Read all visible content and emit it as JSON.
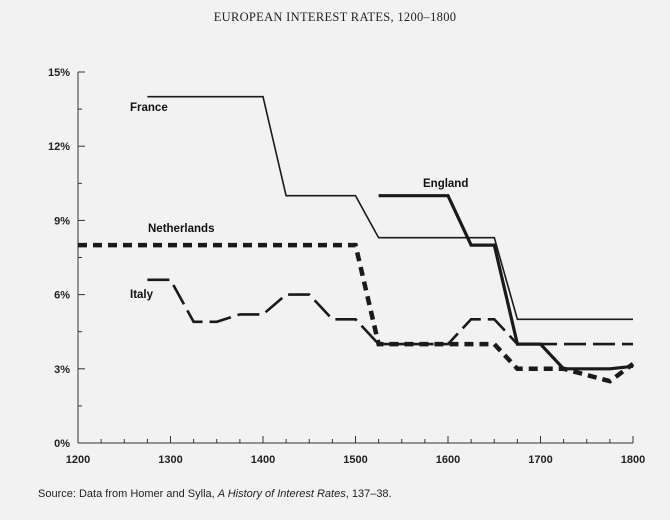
{
  "chart_data": {
    "type": "line",
    "title": "EUROPEAN INTEREST RATES, 1200–1800",
    "xlabel": "",
    "ylabel": "",
    "xlim": [
      1200,
      1800
    ],
    "ylim": [
      0,
      15
    ],
    "xticks": [
      1200,
      1300,
      1400,
      1500,
      1600,
      1700,
      1800
    ],
    "yticks": [
      0,
      3,
      6,
      9,
      12,
      15
    ],
    "x_tick_labels": [
      "1200",
      "1300",
      "1400",
      "1500",
      "1600",
      "1700",
      "1800"
    ],
    "y_tick_labels": [
      "0%",
      "3%",
      "6%",
      "9%",
      "12%",
      "15%"
    ],
    "grid": false,
    "legend": "none (series labelled directly on the plot)",
    "source_prefix": "Source: Data from Homer and Sylla, ",
    "source_title": "A History of Interest Rates",
    "source_suffix": ", 137–38.",
    "series": [
      {
        "name": "France",
        "style": "solid-thin",
        "color": "#1a1a1a",
        "points": [
          [
            1275,
            14
          ],
          [
            1400,
            14
          ],
          [
            1425,
            10
          ],
          [
            1500,
            10
          ],
          [
            1525,
            8.3
          ],
          [
            1650,
            8.3
          ],
          [
            1675,
            5
          ],
          [
            1800,
            5
          ]
        ]
      },
      {
        "name": "England",
        "style": "solid-thick",
        "color": "#1a1a1a",
        "points": [
          [
            1525,
            10
          ],
          [
            1600,
            10
          ],
          [
            1625,
            8
          ],
          [
            1650,
            8
          ],
          [
            1675,
            4
          ],
          [
            1700,
            4
          ],
          [
            1725,
            3
          ],
          [
            1775,
            3
          ],
          [
            1800,
            3.1
          ]
        ]
      },
      {
        "name": "Netherlands",
        "style": "short-dash",
        "color": "#1a1a1a",
        "points": [
          [
            1200,
            8
          ],
          [
            1500,
            8
          ],
          [
            1525,
            4
          ],
          [
            1650,
            4
          ],
          [
            1675,
            3
          ],
          [
            1725,
            3
          ],
          [
            1775,
            2.5
          ],
          [
            1800,
            3.2
          ]
        ]
      },
      {
        "name": "Italy",
        "style": "long-dash",
        "color": "#1a1a1a",
        "points": [
          [
            1275,
            6.6
          ],
          [
            1300,
            6.6
          ],
          [
            1325,
            4.9
          ],
          [
            1350,
            4.9
          ],
          [
            1375,
            5.2
          ],
          [
            1400,
            5.2
          ],
          [
            1425,
            6
          ],
          [
            1450,
            6
          ],
          [
            1475,
            5
          ],
          [
            1500,
            5
          ],
          [
            1525,
            4
          ],
          [
            1600,
            4
          ],
          [
            1625,
            5
          ],
          [
            1650,
            5
          ],
          [
            1675,
            4
          ],
          [
            1800,
            4
          ]
        ]
      }
    ]
  }
}
